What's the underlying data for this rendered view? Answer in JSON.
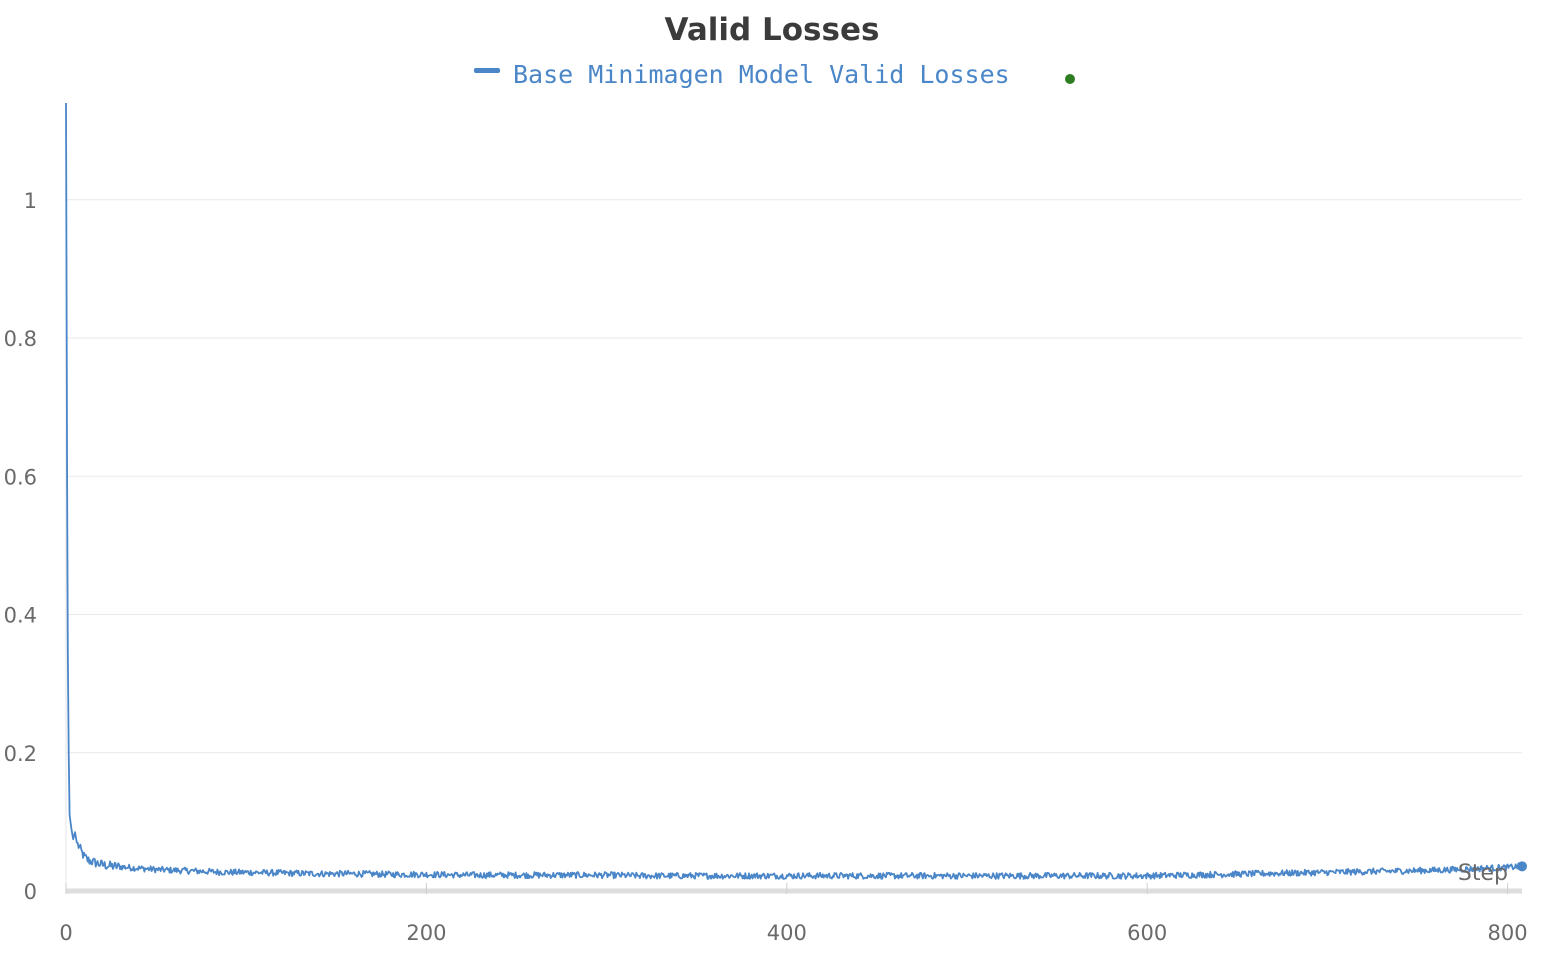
{
  "chart_data": {
    "type": "line",
    "title": "Valid Losses",
    "xlabel": "Step",
    "ylabel": "",
    "xlim": [
      0,
      808
    ],
    "ylim": [
      0,
      1.14
    ],
    "x_ticks": [
      0,
      200,
      400,
      600,
      800
    ],
    "y_ticks": [
      0,
      0.2,
      0.4,
      0.6,
      0.8,
      1
    ],
    "x_tick_labels": [
      "0",
      "200",
      "400",
      "600",
      "800"
    ],
    "y_tick_labels": [
      "0",
      "0.2",
      "0.4",
      "0.6",
      "0.8",
      "1"
    ],
    "grid": true,
    "legend": "top-center",
    "series": [
      {
        "name": "Base Minimagen Model Valid Losses",
        "color": "#4a86c8",
        "x": [
          0,
          0.3,
          0.6,
          1,
          1.5,
          2,
          3,
          4,
          5,
          6,
          8,
          10,
          12,
          15,
          20,
          25,
          30,
          40,
          50,
          60,
          70,
          80,
          90,
          100,
          120,
          140,
          160,
          180,
          200,
          220,
          240,
          260,
          280,
          300,
          320,
          340,
          360,
          380,
          400,
          420,
          440,
          460,
          480,
          500,
          520,
          540,
          560,
          580,
          600,
          620,
          640,
          660,
          680,
          700,
          720,
          740,
          760,
          780,
          800,
          808
        ],
        "y": [
          1.14,
          0.9,
          0.6,
          0.35,
          0.2,
          0.11,
          0.09,
          0.075,
          0.085,
          0.07,
          0.06,
          0.05,
          0.045,
          0.042,
          0.038,
          0.036,
          0.035,
          0.033,
          0.031,
          0.03,
          0.029,
          0.028,
          0.027,
          0.027,
          0.026,
          0.025,
          0.025,
          0.024,
          0.024,
          0.023,
          0.023,
          0.023,
          0.023,
          0.023,
          0.022,
          0.022,
          0.022,
          0.022,
          0.022,
          0.022,
          0.022,
          0.022,
          0.022,
          0.022,
          0.022,
          0.022,
          0.022,
          0.022,
          0.022,
          0.023,
          0.024,
          0.025,
          0.026,
          0.027,
          0.028,
          0.029,
          0.03,
          0.032,
          0.034,
          0.036
        ]
      }
    ]
  },
  "colors": {
    "series": "#4a86c8",
    "legend_dot": "#2e7d23",
    "grid": "#e9e9e9"
  }
}
